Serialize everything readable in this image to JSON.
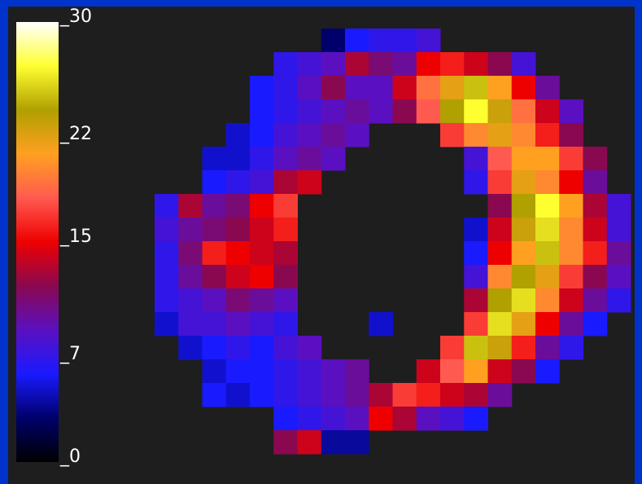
{
  "chart_data": {
    "type": "heatmap",
    "clim": [
      0,
      30
    ],
    "colormap": [
      "#000000",
      "#00006a",
      "#1a1aff",
      "#5a10c0",
      "#8a0850",
      "#ee0000",
      "#ff5a50",
      "#ffa020",
      "#b0a000",
      "#ffff30",
      "#ffffff"
    ],
    "colorbar_ticks": [
      {
        "value": 30,
        "label": "_30"
      },
      {
        "value": 22,
        "label": "_22"
      },
      {
        "value": 15,
        "label": "_15"
      },
      {
        "value": 7,
        "label": "_7"
      },
      {
        "value": 0,
        "label": "_0"
      }
    ],
    "z": [
      [
        null,
        null,
        null,
        null,
        null,
        null,
        null,
        3,
        6,
        7,
        7,
        8,
        null,
        null,
        null,
        null,
        null,
        null,
        null,
        null
      ],
      [
        null,
        null,
        null,
        null,
        null,
        7,
        8,
        9,
        13,
        11,
        10,
        15,
        16,
        14,
        12,
        8,
        null,
        null,
        null,
        null
      ],
      [
        null,
        null,
        null,
        null,
        6,
        7,
        9,
        12,
        9,
        9,
        14,
        19,
        22,
        25,
        21,
        15,
        10,
        null,
        null,
        null
      ],
      [
        null,
        null,
        null,
        null,
        6,
        7,
        8,
        9,
        10,
        9,
        12,
        18,
        24,
        27,
        23,
        19,
        14,
        9,
        null,
        null
      ],
      [
        null,
        null,
        null,
        5,
        6,
        8,
        9,
        10,
        9,
        null,
        null,
        null,
        17,
        20,
        22,
        20,
        16,
        12,
        null,
        null
      ],
      [
        null,
        null,
        5,
        5,
        7,
        9,
        10,
        9,
        null,
        null,
        null,
        null,
        null,
        8,
        18,
        21,
        21,
        17,
        12,
        null
      ],
      [
        null,
        null,
        6,
        7,
        8,
        13,
        14,
        null,
        null,
        null,
        null,
        null,
        null,
        7,
        17,
        22,
        20,
        15,
        10,
        null
      ],
      [
        7,
        13,
        10,
        11,
        15,
        17,
        null,
        null,
        null,
        null,
        null,
        null,
        null,
        null,
        12,
        24,
        27,
        21,
        13,
        8
      ],
      [
        8,
        10,
        11,
        12,
        14,
        16,
        null,
        null,
        null,
        null,
        null,
        null,
        null,
        5,
        14,
        23,
        26,
        20,
        14,
        8
      ],
      [
        7,
        11,
        16,
        15,
        14,
        13,
        null,
        null,
        null,
        null,
        null,
        null,
        null,
        6,
        15,
        21,
        25,
        20,
        16,
        10
      ],
      [
        7,
        10,
        12,
        14,
        15,
        12,
        null,
        null,
        null,
        null,
        null,
        null,
        null,
        8,
        20,
        24,
        22,
        17,
        12,
        9
      ],
      [
        7,
        8,
        9,
        11,
        10,
        9,
        null,
        null,
        null,
        null,
        null,
        null,
        null,
        13,
        24,
        26,
        20,
        14,
        10,
        7
      ],
      [
        5,
        8,
        8,
        9,
        8,
        7,
        null,
        null,
        null,
        5,
        null,
        null,
        null,
        17,
        26,
        22,
        15,
        10,
        6,
        null
      ],
      [
        null,
        5,
        6,
        7,
        6,
        8,
        9,
        null,
        null,
        null,
        null,
        null,
        17,
        25,
        23,
        16,
        10,
        7,
        null,
        null
      ],
      [
        null,
        null,
        5,
        6,
        6,
        7,
        8,
        9,
        10,
        null,
        null,
        14,
        18,
        21,
        14,
        12,
        6,
        null,
        null,
        null
      ],
      [
        null,
        null,
        6,
        5,
        6,
        7,
        8,
        9,
        10,
        13,
        17,
        16,
        14,
        13,
        10,
        null,
        null,
        null,
        null,
        null
      ],
      [
        null,
        null,
        null,
        null,
        null,
        6,
        7,
        8,
        9,
        15,
        13,
        9,
        8,
        6,
        null,
        null,
        null,
        null,
        null,
        null
      ],
      [
        null,
        null,
        null,
        null,
        null,
        12,
        14,
        4,
        4,
        null,
        null,
        null,
        null,
        null,
        null,
        null,
        null,
        null,
        null,
        null
      ]
    ]
  }
}
